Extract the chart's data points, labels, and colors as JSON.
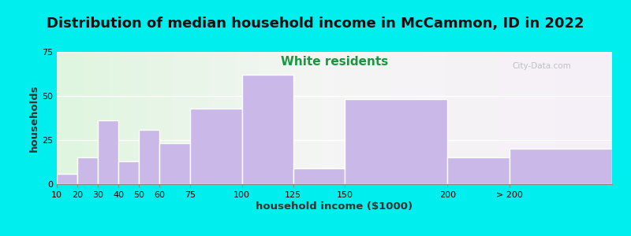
{
  "title": "Distribution of median household income in McCammon, ID in 2022",
  "subtitle": "White residents",
  "xlabel": "household income ($1000)",
  "ylabel": "households",
  "bar_color": "#c9b8e8",
  "bar_edgecolor": "#ffffff",
  "background_color": "#00eeee",
  "ylim": [
    0,
    75
  ],
  "yticks": [
    0,
    25,
    50,
    75
  ],
  "title_fontsize": 13,
  "subtitle_fontsize": 11,
  "subtitle_color": "#1a9641",
  "axis_label_fontsize": 9.5,
  "watermark": "City-Data.com",
  "bin_edges": [
    10,
    20,
    30,
    40,
    50,
    60,
    75,
    100,
    125,
    150,
    200,
    230,
    280
  ],
  "values": [
    6,
    15,
    36,
    13,
    31,
    23,
    43,
    62,
    9,
    48,
    15,
    20
  ],
  "xtick_positions": [
    10,
    20,
    30,
    40,
    50,
    60,
    75,
    100,
    125,
    150,
    200,
    230
  ],
  "xtick_labels": [
    "10",
    "20",
    "30",
    "40",
    "50",
    "60",
    "75",
    "100",
    "125",
    "150",
    "200",
    "> 200"
  ]
}
